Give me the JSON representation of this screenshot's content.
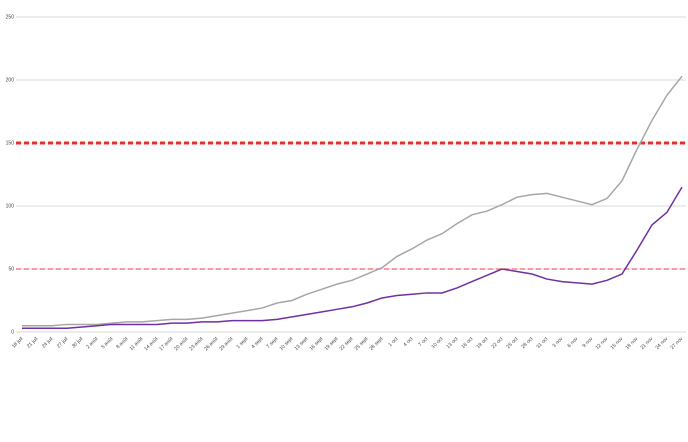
{
  "chart_data": {
    "type": "line",
    "categories": [
      "18 juil",
      "21 juil",
      "24 juil",
      "27 juil",
      "30 juil",
      "2 août",
      "5 août",
      "8 août",
      "11 août",
      "14 août",
      "17 août",
      "20 août",
      "23 août",
      "26 août",
      "29 août",
      "1 sept",
      "4 sept",
      "7 sept",
      "10 sept",
      "13 sept",
      "16 sept",
      "19 sept",
      "22 sept",
      "25 sept",
      "28 sept",
      "1 oct",
      "4 oct",
      "7 oct",
      "10 oct",
      "13 oct",
      "16 oct",
      "19 oct",
      "22 oct",
      "25 oct",
      "28 oct",
      "31 oct",
      "3 nov",
      "6 nov",
      "9 nov",
      "12 nov",
      "15 nov",
      "18 nov",
      "21 nov",
      "24 nov",
      "27 nov"
    ],
    "series": [
      {
        "color": "#a6a6a6",
        "values": [
          5,
          5,
          5,
          6,
          6,
          6,
          7,
          8,
          8,
          9,
          10,
          10,
          11,
          13,
          15,
          17,
          19,
          23,
          25,
          30,
          34,
          38,
          41,
          46,
          51,
          60,
          66,
          73,
          78,
          86,
          93,
          96,
          101,
          107,
          109,
          110,
          107,
          104,
          101,
          106,
          120,
          145,
          168,
          188,
          203
        ]
      },
      {
        "color": "#7030a0",
        "values": [
          3,
          3,
          3,
          3,
          4,
          5,
          6,
          6,
          6,
          6,
          7,
          7,
          8,
          8,
          9,
          9,
          9,
          10,
          12,
          14,
          16,
          18,
          20,
          23,
          27,
          29,
          30,
          31,
          31,
          35,
          40,
          45,
          50,
          48,
          46,
          42,
          40,
          39,
          38,
          41,
          46,
          65,
          85,
          95,
          115
        ]
      }
    ],
    "reference_lines": [
      {
        "value": 150,
        "color": "#e03030",
        "width": 3
      },
      {
        "value": 50,
        "color": "#f08080",
        "width": 1.5
      }
    ],
    "ylim": [
      0,
      250
    ],
    "yticks": [
      0,
      50,
      100,
      150,
      200,
      250
    ],
    "grid": true
  }
}
